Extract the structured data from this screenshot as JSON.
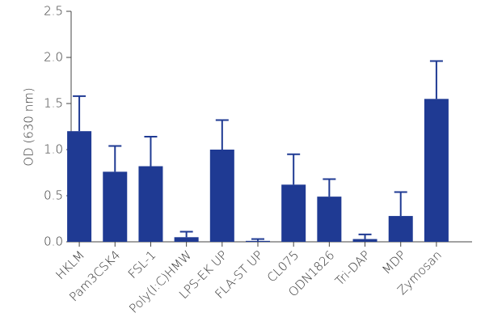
{
  "chart_data": {
    "type": "bar",
    "y_label": "OD (630 nm)",
    "categories": [
      "HKLM",
      "Pam3CSK4",
      "FSL-1",
      "Poly(I:C)HMW",
      "LPS-EK UP",
      "FLA-ST UP",
      "CL075",
      "ODN1826",
      "Tri-DAP",
      "MDP",
      "Zymosan"
    ],
    "values": [
      1.2,
      0.76,
      0.82,
      0.05,
      1.0,
      0.01,
      0.62,
      0.49,
      0.03,
      0.28,
      1.55
    ],
    "errors": [
      0.38,
      0.28,
      0.32,
      0.06,
      0.32,
      0.02,
      0.33,
      0.19,
      0.05,
      0.26,
      0.41
    ],
    "color": "#1f3a93",
    "ylim": [
      0,
      2.5
    ],
    "yticks": [
      {
        "value": 0,
        "label": "0.0"
      },
      0.5,
      {
        "value": 1,
        "label": "1.0"
      },
      1.5,
      {
        "value": 2,
        "label": "2.0"
      },
      2.5
    ]
  }
}
